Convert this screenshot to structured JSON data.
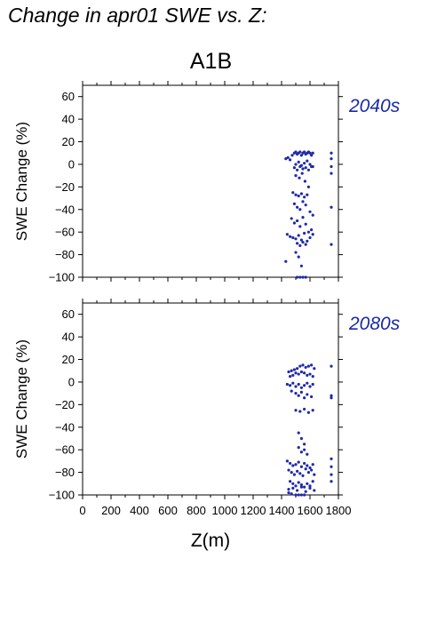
{
  "figure": {
    "title": "Change in apr01 SWE vs. Z:",
    "scenario": "A1B",
    "point_color": "#1f2aa6"
  },
  "chart_data": [
    {
      "type": "scatter",
      "annotation": "2040s",
      "xlabel": "Z(m)",
      "ylabel": "SWE Change (%)",
      "xlim": [
        0,
        1800
      ],
      "ylim": [
        -100,
        70
      ],
      "xticks": [
        0,
        200,
        400,
        600,
        800,
        1000,
        1200,
        1400,
        1600,
        1800
      ],
      "yticks": [
        -100,
        -80,
        -60,
        -40,
        -20,
        0,
        20,
        40,
        60
      ],
      "grid": false,
      "x": [
        1430,
        1445,
        1460,
        1475,
        1490,
        1500,
        1510,
        1520,
        1530,
        1540,
        1550,
        1560,
        1570,
        1580,
        1590,
        1600,
        1610,
        1620,
        1500,
        1520,
        1540,
        1560,
        1580,
        1600,
        1620,
        1490,
        1510,
        1530,
        1550,
        1570,
        1590,
        1610,
        1500,
        1525,
        1545,
        1565,
        1590,
        1480,
        1500,
        1520,
        1540,
        1560,
        1580,
        1490,
        1510,
        1530,
        1550,
        1570,
        1600,
        1620,
        1470,
        1490,
        1510,
        1530,
        1550,
        1570,
        1590,
        1610,
        1440,
        1460,
        1480,
        1500,
        1520,
        1540,
        1560,
        1580,
        1600,
        1620,
        1510,
        1530,
        1550,
        1570,
        1430,
        1500,
        1520,
        1540,
        1510,
        1530,
        1550,
        1570,
        1750,
        1750,
        1750,
        1750,
        1750,
        1750
      ],
      "y": [
        5,
        6,
        4,
        8,
        10,
        11,
        9,
        10,
        11,
        8,
        10,
        11,
        9,
        10,
        11,
        10,
        8,
        10,
        0,
        2,
        -1,
        1,
        3,
        0,
        -2,
        -3,
        -5,
        -2,
        -4,
        -3,
        -5,
        -2,
        -10,
        -12,
        -8,
        -15,
        -20,
        -25,
        -27,
        -28,
        -26,
        -29,
        -27,
        -35,
        -38,
        -40,
        -33,
        -36,
        -42,
        -45,
        -48,
        -52,
        -50,
        -55,
        -47,
        -53,
        -60,
        -58,
        -62,
        -64,
        -65,
        -66,
        -63,
        -67,
        -61,
        -68,
        -65,
        -62,
        -70,
        -72,
        -69,
        -71,
        -86,
        -78,
        -82,
        -90,
        -100,
        -100,
        -100,
        -100,
        10,
        5,
        -2,
        -8,
        -38,
        -71
      ]
    },
    {
      "type": "scatter",
      "annotation": "2080s",
      "xlabel": "Z(m)",
      "ylabel": "SWE Change (%)",
      "xlim": [
        0,
        1800
      ],
      "ylim": [
        -100,
        70
      ],
      "xticks": [
        0,
        200,
        400,
        600,
        800,
        1000,
        1200,
        1400,
        1600,
        1800
      ],
      "yticks": [
        -100,
        -80,
        -60,
        -40,
        -20,
        0,
        20,
        40,
        60
      ],
      "grid": false,
      "x": [
        1450,
        1470,
        1490,
        1510,
        1530,
        1550,
        1570,
        1590,
        1610,
        1630,
        1460,
        1480,
        1500,
        1520,
        1540,
        1560,
        1580,
        1600,
        1620,
        1440,
        1460,
        1480,
        1500,
        1520,
        1540,
        1560,
        1580,
        1600,
        1620,
        1470,
        1500,
        1520,
        1540,
        1560,
        1580,
        1610,
        1500,
        1530,
        1560,
        1590,
        1620,
        1520,
        1540,
        1560,
        1520,
        1540,
        1560,
        1580,
        1440,
        1460,
        1480,
        1500,
        1520,
        1540,
        1560,
        1580,
        1600,
        1620,
        1450,
        1470,
        1490,
        1510,
        1530,
        1550,
        1570,
        1590,
        1610,
        1630,
        1460,
        1480,
        1500,
        1520,
        1540,
        1560,
        1580,
        1600,
        1620,
        1450,
        1480,
        1510,
        1540,
        1570,
        1600,
        1630,
        1500,
        1520,
        1540,
        1560,
        1450,
        1470,
        1750,
        1750,
        1750,
        1750,
        1750,
        1750,
        1750
      ],
      "y": [
        9,
        10,
        11,
        12,
        14,
        15,
        13,
        14,
        15,
        12,
        5,
        6,
        8,
        7,
        9,
        8,
        6,
        7,
        5,
        -2,
        -3,
        -1,
        -4,
        -2,
        -5,
        -3,
        -1,
        -4,
        -2,
        -8,
        -10,
        -12,
        -9,
        -14,
        -11,
        -13,
        -25,
        -26,
        -24,
        -27,
        -25,
        -45,
        -50,
        -55,
        -58,
        -62,
        -60,
        -64,
        -70,
        -72,
        -74,
        -73,
        -71,
        -75,
        -72,
        -74,
        -76,
        -73,
        -78,
        -80,
        -82,
        -79,
        -81,
        -83,
        -77,
        -80,
        -78,
        -82,
        -88,
        -90,
        -92,
        -89,
        -91,
        -93,
        -90,
        -92,
        -88,
        -95,
        -94,
        -96,
        -93,
        -97,
        -94,
        -96,
        -100,
        -100,
        -100,
        -100,
        -98,
        -99,
        14,
        -12,
        -14,
        -68,
        -75,
        -82,
        -88
      ]
    }
  ]
}
